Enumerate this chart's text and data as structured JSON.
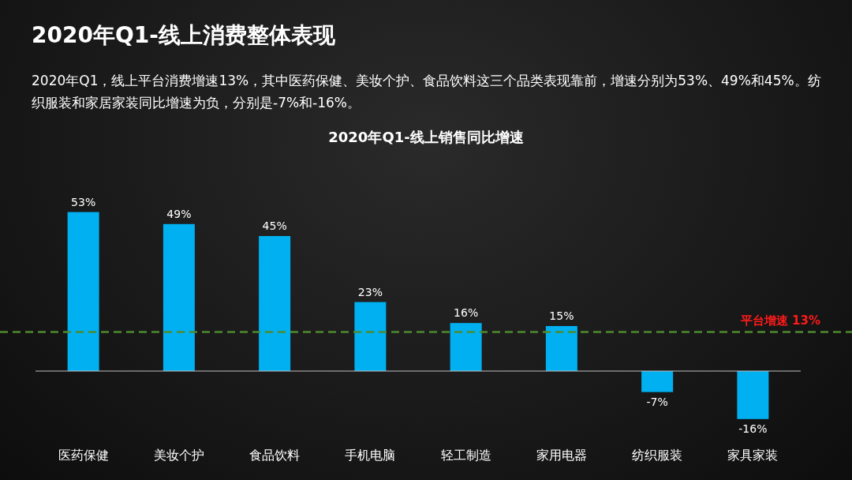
{
  "chart_data": {
    "type": "bar",
    "title": "2020年Q1-线上消费整体表现",
    "subtitle": "2020年Q1，线上平台消费增速13%，其中医药保健、美妆个护、食品饮料这三个品类表现靠前，增速分别为53%、49%和45%。纺织服装和家居家装同比增速为负，分别是-7%和-16%。",
    "annotations": [
      "2020年Q1-线上销售同比增速"
    ],
    "categories": [
      "医药保健",
      "美妆个护",
      "食品饮料",
      "手机电脑",
      "轻工制造",
      "家用电器",
      "纺织服装",
      "家具家装"
    ],
    "values": [
      53,
      49,
      45,
      23,
      16,
      15,
      -7,
      -16
    ],
    "value_labels": [
      "53%",
      "49%",
      "45%",
      "23%",
      "16%",
      "15%",
      "-7%",
      "-16%"
    ],
    "color": "#00b0f0",
    "ref_lines": [
      {
        "axis": "y",
        "value": 13,
        "label": "平台增速 13%",
        "color": "#4e8a2e",
        "line_style": "dashed"
      }
    ]
  }
}
